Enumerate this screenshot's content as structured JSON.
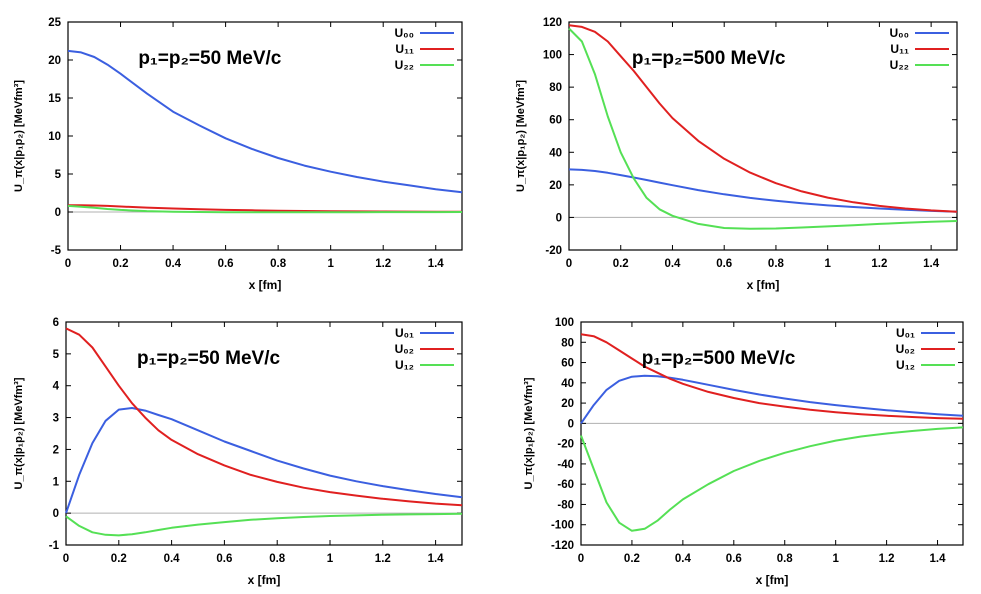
{
  "colors": {
    "series_a": "#3b5fe0",
    "series_b": "#e02020",
    "series_c": "#55e055",
    "axis": "#000000",
    "zero_line": "#b0b0b0"
  },
  "chart_data": [
    {
      "type": "line",
      "title": "p₁=p₂=50 MeV/c",
      "xlabel": "x [fm]",
      "ylabel": "U_π(x|p₁p₂) [MeVfm³]",
      "xlim": [
        0,
        1.5
      ],
      "ylim": [
        -5,
        25
      ],
      "xticks": [
        0,
        0.2,
        0.4,
        0.6,
        0.8,
        1,
        1.2,
        1.4
      ],
      "xtick_labels": [
        "0",
        "0.2",
        "0.4",
        "0.6",
        "0.8",
        "1",
        "1.2",
        "1.4"
      ],
      "yticks": [
        -5,
        0,
        5,
        10,
        15,
        20,
        25
      ],
      "ytick_labels": [
        "-5",
        "0",
        "5",
        "10",
        "15",
        "20",
        "25"
      ],
      "legend_position": "top-right",
      "x": [
        0,
        0.05,
        0.1,
        0.15,
        0.2,
        0.3,
        0.4,
        0.5,
        0.6,
        0.7,
        0.8,
        0.9,
        1.0,
        1.1,
        1.2,
        1.3,
        1.4,
        1.5
      ],
      "series": [
        {
          "name": "U₀₀",
          "color": "#3b5fe0",
          "values": [
            21.2,
            21.0,
            20.4,
            19.4,
            18.2,
            15.6,
            13.2,
            11.4,
            9.7,
            8.3,
            7.1,
            6.1,
            5.3,
            4.6,
            4.0,
            3.5,
            3.0,
            2.6
          ]
        },
        {
          "name": "U₁₁",
          "color": "#e02020",
          "values": [
            0.9,
            0.9,
            0.85,
            0.8,
            0.72,
            0.58,
            0.46,
            0.36,
            0.28,
            0.22,
            0.17,
            0.13,
            0.1,
            0.08,
            0.06,
            0.05,
            0.04,
            0.03
          ]
        },
        {
          "name": "U₂₂",
          "color": "#55e055",
          "values": [
            0.8,
            0.7,
            0.55,
            0.4,
            0.28,
            0.12,
            0.04,
            0.0,
            -0.02,
            -0.03,
            -0.03,
            -0.03,
            -0.02,
            -0.02,
            -0.01,
            -0.01,
            -0.01,
            0.0
          ]
        }
      ]
    },
    {
      "type": "line",
      "title": "p₁=p₂=500 MeV/c",
      "xlabel": "x [fm]",
      "ylabel": "U_π(x|p₁p₂) [MeVfm³]",
      "xlim": [
        0,
        1.5
      ],
      "ylim": [
        -20,
        120
      ],
      "xticks": [
        0,
        0.2,
        0.4,
        0.6,
        0.8,
        1,
        1.2,
        1.4
      ],
      "xtick_labels": [
        "0",
        "0.2",
        "0.4",
        "0.6",
        "0.8",
        "1",
        "1.2",
        "1.4"
      ],
      "yticks": [
        -20,
        0,
        20,
        40,
        60,
        80,
        100,
        120
      ],
      "ytick_labels": [
        "-20",
        "0",
        "20",
        "40",
        "60",
        "80",
        "100",
        "120"
      ],
      "legend_position": "top-right",
      "x": [
        0,
        0.05,
        0.1,
        0.15,
        0.2,
        0.25,
        0.3,
        0.35,
        0.4,
        0.5,
        0.6,
        0.7,
        0.8,
        0.9,
        1.0,
        1.1,
        1.2,
        1.3,
        1.4,
        1.5
      ],
      "series": [
        {
          "name": "U₀₀",
          "color": "#3b5fe0",
          "values": [
            29.5,
            29.2,
            28.5,
            27.4,
            26.0,
            24.5,
            23.0,
            21.4,
            19.8,
            16.8,
            14.2,
            12.0,
            10.2,
            8.7,
            7.4,
            6.4,
            5.5,
            4.7,
            4.0,
            3.5
          ]
        },
        {
          "name": "U₁₁",
          "color": "#e02020",
          "values": [
            118,
            117,
            114,
            108,
            99,
            90,
            80,
            70,
            61,
            47,
            36,
            27.5,
            21,
            16,
            12.2,
            9.3,
            7.1,
            5.5,
            4.3,
            3.5
          ]
        },
        {
          "name": "U₂₂",
          "color": "#55e055",
          "values": [
            116,
            108,
            88,
            62,
            40,
            24,
            12,
            5,
            1,
            -4,
            -6.5,
            -7,
            -6.8,
            -6.2,
            -5.5,
            -4.8,
            -4.0,
            -3.3,
            -2.7,
            -2.2
          ]
        }
      ]
    },
    {
      "type": "line",
      "title": "p₁=p₂=50 MeV/c",
      "xlabel": "x [fm]",
      "ylabel": "U_π(x|p₁p₂) [MeVfm³]",
      "xlim": [
        0,
        1.5
      ],
      "ylim": [
        -1,
        6
      ],
      "xticks": [
        0,
        0.2,
        0.4,
        0.6,
        0.8,
        1,
        1.2,
        1.4
      ],
      "xtick_labels": [
        "0",
        "0.2",
        "0.4",
        "0.6",
        "0.8",
        "1",
        "1.2",
        "1.4"
      ],
      "yticks": [
        -1,
        0,
        1,
        2,
        3,
        4,
        5,
        6
      ],
      "ytick_labels": [
        "-1",
        "0",
        "1",
        "2",
        "3",
        "4",
        "5",
        "6"
      ],
      "legend_position": "top-right",
      "x": [
        0,
        0.05,
        0.1,
        0.15,
        0.2,
        0.25,
        0.3,
        0.35,
        0.4,
        0.5,
        0.6,
        0.7,
        0.8,
        0.9,
        1.0,
        1.1,
        1.2,
        1.3,
        1.4,
        1.5
      ],
      "series": [
        {
          "name": "U₀₁",
          "color": "#3b5fe0",
          "values": [
            0,
            1.2,
            2.2,
            2.9,
            3.25,
            3.3,
            3.22,
            3.08,
            2.95,
            2.6,
            2.25,
            1.95,
            1.65,
            1.4,
            1.18,
            1.0,
            0.85,
            0.72,
            0.6,
            0.5
          ]
        },
        {
          "name": "U₀₂",
          "color": "#e02020",
          "values": [
            5.8,
            5.6,
            5.2,
            4.6,
            4.0,
            3.45,
            3.0,
            2.6,
            2.3,
            1.85,
            1.5,
            1.2,
            0.98,
            0.8,
            0.66,
            0.55,
            0.45,
            0.37,
            0.3,
            0.25
          ]
        },
        {
          "name": "U₁₂",
          "color": "#55e055",
          "values": [
            -0.1,
            -0.4,
            -0.6,
            -0.68,
            -0.7,
            -0.66,
            -0.6,
            -0.53,
            -0.46,
            -0.36,
            -0.28,
            -0.21,
            -0.16,
            -0.12,
            -0.09,
            -0.07,
            -0.05,
            -0.04,
            -0.03,
            -0.02
          ]
        }
      ]
    },
    {
      "type": "line",
      "title": "p₁=p₂=500 MeV/c",
      "xlabel": "x [fm]",
      "ylabel": "U_π(x|p₁p₂) [MeVfm³]",
      "xlim": [
        0,
        1.5
      ],
      "ylim": [
        -120,
        100
      ],
      "xticks": [
        0,
        0.2,
        0.4,
        0.6,
        0.8,
        1,
        1.2,
        1.4
      ],
      "xtick_labels": [
        "0",
        "0.2",
        "0.4",
        "0.6",
        "0.8",
        "1",
        "1.2",
        "1.4"
      ],
      "yticks": [
        -120,
        -100,
        -80,
        -60,
        -40,
        -20,
        0,
        20,
        40,
        60,
        80,
        100
      ],
      "ytick_labels": [
        "-120",
        "-100",
        "-80",
        "-60",
        "-40",
        "-20",
        "0",
        "20",
        "40",
        "60",
        "80",
        "100"
      ],
      "legend_position": "top-right",
      "x": [
        0,
        0.05,
        0.1,
        0.15,
        0.2,
        0.25,
        0.3,
        0.35,
        0.4,
        0.5,
        0.6,
        0.7,
        0.8,
        0.9,
        1.0,
        1.1,
        1.2,
        1.3,
        1.4,
        1.5
      ],
      "series": [
        {
          "name": "U₀₁",
          "color": "#3b5fe0",
          "values": [
            0,
            18,
            33,
            42,
            46,
            47,
            46.5,
            45,
            43,
            38,
            33,
            28.5,
            24.5,
            21,
            18,
            15.5,
            13,
            11,
            9,
            7.5
          ]
        },
        {
          "name": "U₀₂",
          "color": "#e02020",
          "values": [
            88,
            86,
            80,
            72,
            64,
            56,
            50,
            44,
            39,
            31,
            25,
            20,
            16.5,
            13.5,
            11,
            9,
            7.5,
            6.3,
            5.2,
            4.5
          ]
        },
        {
          "name": "U₁₂",
          "color": "#55e055",
          "values": [
            -12,
            -45,
            -78,
            -98,
            -106,
            -104,
            -96,
            -85,
            -75,
            -60,
            -47,
            -37,
            -29,
            -22.5,
            -17,
            -13,
            -10,
            -7.5,
            -5.5,
            -4
          ]
        }
      ]
    }
  ]
}
